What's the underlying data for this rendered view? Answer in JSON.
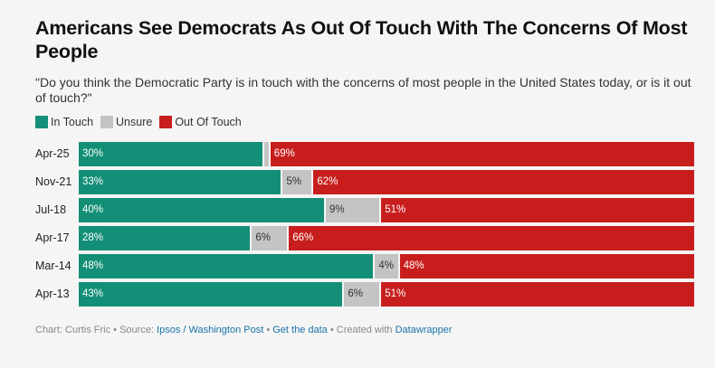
{
  "title": "Americans See Democrats As Out Of Touch With The Concerns Of Most People",
  "subtitle": "\"Do you think the Democratic Party is in touch with the concerns of most people in the United States today, or is it out of touch?\"",
  "colors": {
    "in_touch": "#148f77",
    "unsure": "#c4c4c4",
    "out_of_touch": "#c71e1d"
  },
  "footer": {
    "prefix": "Chart: Curtis Fric • Source: ",
    "source": "Ipsos / Washington Post",
    "sep1": " • ",
    "get_data": "Get the data",
    "sep2": " • Created with ",
    "tool": "Datawrapper"
  },
  "chart_data": {
    "type": "bar",
    "orientation": "horizontal-stacked",
    "title": "Americans See Democrats As Out Of Touch With The Concerns Of Most People",
    "legend_position": "top-left",
    "categories": [
      "Apr-25",
      "Nov-21",
      "Jul-18",
      "Apr-17",
      "Mar-14",
      "Apr-13"
    ],
    "series": [
      {
        "name": "In Touch",
        "values": [
          30,
          33,
          40,
          28,
          48,
          43
        ]
      },
      {
        "name": "Unsure",
        "values": [
          1,
          5,
          9,
          6,
          4,
          6
        ]
      },
      {
        "name": "Out Of Touch",
        "values": [
          69,
          62,
          51,
          66,
          48,
          51
        ]
      }
    ],
    "labels": [
      [
        "30%",
        "",
        "69%"
      ],
      [
        "33%",
        "5%",
        "62%"
      ],
      [
        "40%",
        "9%",
        "51%"
      ],
      [
        "28%",
        "6%",
        "66%"
      ],
      [
        "48%",
        "4%",
        "48%"
      ],
      [
        "43%",
        "6%",
        "51%"
      ]
    ],
    "xlim": [
      0,
      100
    ]
  }
}
